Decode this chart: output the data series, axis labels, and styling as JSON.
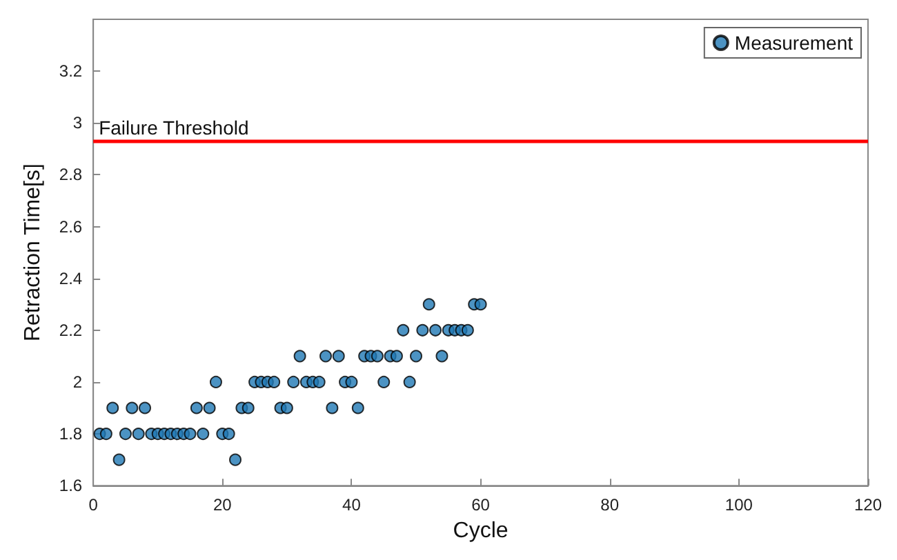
{
  "chart_data": {
    "type": "scatter",
    "xlabel": "Cycle",
    "ylabel": "Retraction Time[s]",
    "x": [
      1,
      2,
      3,
      4,
      5,
      6,
      7,
      8,
      9,
      10,
      11,
      12,
      13,
      14,
      15,
      16,
      17,
      18,
      19,
      20,
      21,
      22,
      23,
      24,
      25,
      26,
      27,
      28,
      29,
      30,
      31,
      32,
      33,
      34,
      35,
      36,
      37,
      38,
      39,
      40,
      41,
      42,
      43,
      44,
      45,
      46,
      47,
      48,
      49,
      50,
      51,
      52,
      53,
      54,
      55,
      56,
      57,
      58,
      59,
      60
    ],
    "series": [
      {
        "name": "Measurement",
        "color": "#1f78b4",
        "values": [
          1.8,
          1.8,
          1.9,
          1.7,
          1.8,
          1.9,
          1.8,
          1.9,
          1.8,
          1.8,
          1.8,
          1.8,
          1.8,
          1.8,
          1.8,
          1.9,
          1.8,
          1.9,
          2.0,
          1.8,
          1.8,
          1.7,
          1.9,
          1.9,
          2.0,
          2.0,
          2.0,
          2.0,
          1.9,
          1.9,
          2.0,
          2.1,
          2.0,
          2.0,
          2.0,
          2.1,
          1.9,
          2.1,
          2.0,
          2.0,
          1.9,
          2.1,
          2.1,
          2.1,
          2.0,
          2.1,
          2.1,
          2.2,
          2.0,
          2.1,
          2.2,
          2.3,
          2.2,
          2.1,
          2.2,
          2.2,
          2.2,
          2.2,
          2.3,
          2.3
        ]
      }
    ],
    "xlim": [
      0,
      120
    ],
    "xticks": [
      0,
      20,
      40,
      60,
      80,
      100,
      120
    ],
    "ylim": [
      1.6,
      3.4
    ],
    "yticks": [
      1.6,
      1.8,
      2,
      2.2,
      2.4,
      2.6,
      2.8,
      3,
      3.2
    ],
    "ref_lines": [
      {
        "axis": "y",
        "value": 2.93,
        "label": "Failure Threshold",
        "color": "#ff0000"
      }
    ],
    "grid": false,
    "legend": "top right",
    "marker": "circle"
  }
}
